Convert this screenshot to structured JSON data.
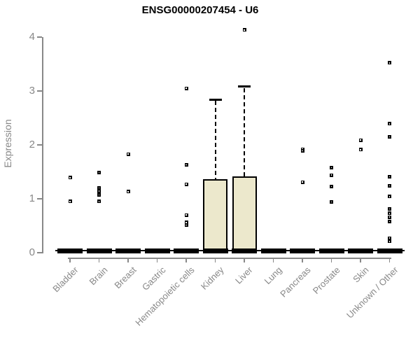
{
  "window": {
    "title": "ENSG00000207454 - U6"
  },
  "colors": {
    "background": "#ffffff",
    "title_text": "#000000",
    "axis": "#888888",
    "axis_text": "#888888",
    "box_fill": "#ece8cc",
    "box_border": "#000000",
    "marker": "#000000",
    "marker_hole": "#ffffff"
  },
  "chart_data": {
    "type": "boxplot",
    "title": "ENSG00000207454 - U6",
    "xlabel": "",
    "ylabel": "Expression",
    "ylim": [
      0,
      4
    ],
    "y_ticks": [
      0,
      1,
      2,
      3,
      4
    ],
    "grid": false,
    "whisker_style": "dashed",
    "legend": "none",
    "categories": [
      "Bladder",
      "Brain",
      "Breast",
      "Gastric",
      "Hematopoietic cells",
      "Kidney",
      "Liver",
      "Lung",
      "Pancreas",
      "Prostate",
      "Skin",
      "Unknown / Other"
    ],
    "series": [
      {
        "category": "Bladder",
        "whisker_low": 0,
        "q1": 0,
        "median": 0,
        "q3": 0,
        "whisker_high": 0,
        "outliers": [
          1.39,
          0.95
        ]
      },
      {
        "category": "Brain",
        "whisker_low": 0,
        "q1": 0,
        "median": 0,
        "q3": 0,
        "whisker_high": 0,
        "outliers": [
          1.49,
          1.2,
          1.14,
          1.07,
          0.95
        ]
      },
      {
        "category": "Breast",
        "whisker_low": 0,
        "q1": 0,
        "median": 0,
        "q3": 0,
        "whisker_high": 0,
        "outliers": [
          1.83,
          1.13
        ]
      },
      {
        "category": "Gastric",
        "whisker_low": 0,
        "q1": 0,
        "median": 0,
        "q3": 0,
        "whisker_high": 0,
        "outliers": []
      },
      {
        "category": "Hematopoietic cells",
        "whisker_low": 0,
        "q1": 0,
        "median": 0,
        "q3": 0,
        "whisker_high": 0,
        "outliers": [
          3.05,
          1.63,
          1.27,
          0.7,
          0.56,
          0.51
        ]
      },
      {
        "category": "Kidney",
        "whisker_low": 0,
        "q1": 0,
        "median": 0,
        "q3": 1.36,
        "whisker_high": 2.84,
        "outliers": []
      },
      {
        "category": "Liver",
        "whisker_low": 0,
        "q1": 0,
        "median": 0,
        "q3": 1.42,
        "whisker_high": 3.08,
        "outliers": [
          4.13
        ]
      },
      {
        "category": "Lung",
        "whisker_low": 0,
        "q1": 0,
        "median": 0,
        "q3": 0,
        "whisker_high": 0,
        "outliers": []
      },
      {
        "category": "Pancreas",
        "whisker_low": 0,
        "q1": 0,
        "median": 0,
        "q3": 0,
        "whisker_high": 0,
        "outliers": [
          1.92,
          1.89,
          1.31
        ]
      },
      {
        "category": "Prostate",
        "whisker_low": 0,
        "q1": 0,
        "median": 0,
        "q3": 0,
        "whisker_high": 0,
        "outliers": [
          1.58,
          1.44,
          1.23,
          0.94
        ]
      },
      {
        "category": "Skin",
        "whisker_low": 0,
        "q1": 0,
        "median": 0,
        "q3": 0,
        "whisker_high": 0,
        "outliers": [
          2.09,
          1.91
        ]
      },
      {
        "category": "Unknown / Other",
        "whisker_low": 0,
        "q1": 0,
        "median": 0,
        "q3": 0,
        "whisker_high": 0,
        "outliers": [
          3.52,
          2.39,
          2.15,
          1.41,
          1.24,
          1.04,
          0.81,
          0.73,
          0.66,
          0.58,
          0.27,
          0.21
        ]
      }
    ]
  }
}
